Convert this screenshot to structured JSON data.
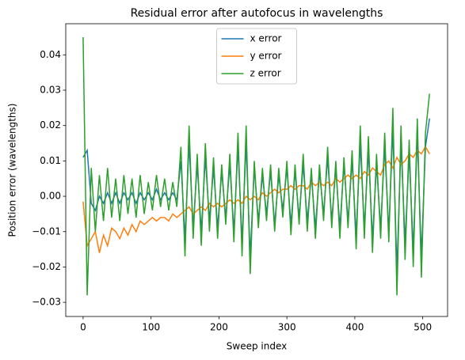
{
  "chart_data": {
    "type": "line",
    "title": "Residual error after autofocus in wavelengths",
    "xlabel": "Sweep index",
    "ylabel": "Position error (wavelengths)",
    "legend": "upper center",
    "x": [
      0,
      6,
      12,
      18,
      24,
      30,
      36,
      42,
      48,
      54,
      60,
      66,
      72,
      78,
      84,
      90,
      96,
      102,
      108,
      114,
      120,
      126,
      132,
      138,
      144,
      150,
      156,
      162,
      168,
      174,
      180,
      186,
      192,
      198,
      204,
      210,
      216,
      222,
      228,
      234,
      240,
      246,
      252,
      258,
      264,
      270,
      276,
      282,
      288,
      294,
      300,
      306,
      312,
      318,
      324,
      330,
      336,
      342,
      348,
      354,
      360,
      366,
      372,
      378,
      384,
      390,
      396,
      402,
      408,
      414,
      420,
      426,
      432,
      438,
      444,
      450,
      456,
      462,
      468,
      474,
      480,
      486,
      492,
      498,
      504,
      510
    ],
    "series": [
      {
        "name": "x error",
        "color": "#1f77b4",
        "values": [
          0.011,
          0.013,
          -0.002,
          -0.004,
          0.0,
          -0.002,
          0.001,
          -0.002,
          0.001,
          -0.002,
          0.001,
          -0.001,
          0.001,
          -0.002,
          0.001,
          -0.001,
          0.001,
          -0.001,
          0.002,
          -0.001,
          0.001,
          -0.001,
          0.001,
          -0.001,
          0.01,
          -0.012,
          0.015,
          -0.009,
          0.009,
          -0.01,
          0.011,
          -0.007,
          0.008,
          -0.009,
          0.007,
          -0.006,
          0.009,
          -0.01,
          0.014,
          -0.013,
          0.015,
          -0.017,
          0.008,
          -0.007,
          0.006,
          -0.005,
          0.007,
          -0.008,
          0.006,
          -0.004,
          0.008,
          -0.008,
          0.007,
          -0.006,
          0.009,
          -0.007,
          0.006,
          -0.009,
          0.007,
          -0.005,
          0.011,
          -0.007,
          0.008,
          -0.009,
          0.009,
          -0.007,
          0.01,
          -0.011,
          0.015,
          -0.009,
          0.013,
          -0.012,
          0.009,
          -0.009,
          0.014,
          -0.01,
          0.019,
          -0.021,
          0.015,
          -0.013,
          0.012,
          -0.015,
          0.017,
          -0.017,
          0.014,
          0.022
        ]
      },
      {
        "name": "y error",
        "color": "#ff7f0e",
        "values": [
          -0.0015,
          -0.014,
          -0.012,
          -0.01,
          -0.016,
          -0.011,
          -0.014,
          -0.009,
          -0.01,
          -0.012,
          -0.009,
          -0.011,
          -0.008,
          -0.01,
          -0.007,
          -0.008,
          -0.007,
          -0.006,
          -0.007,
          -0.006,
          -0.006,
          -0.007,
          -0.005,
          -0.006,
          -0.005,
          -0.004,
          -0.003,
          -0.005,
          -0.004,
          -0.003,
          -0.004,
          -0.002,
          -0.003,
          -0.002,
          -0.003,
          -0.002,
          -0.001,
          -0.002,
          -0.001,
          -0.002,
          0,
          -0.001,
          0,
          -0.001,
          0.001,
          0,
          0.001,
          0.002,
          0.001,
          0.002,
          0.002,
          0.003,
          0.002,
          0.003,
          0.003,
          0.002,
          0.004,
          0.003,
          0.004,
          0.003,
          0.004,
          0.003,
          0.005,
          0.004,
          0.005,
          0.006,
          0.005,
          0.006,
          0.005,
          0.007,
          0.006,
          0.008,
          0.007,
          0.006,
          0.009,
          0.01,
          0.008,
          0.011,
          0.009,
          0.01,
          0.012,
          0.011,
          0.013,
          0.012,
          0.014,
          0.012
        ]
      },
      {
        "name": "z error",
        "color": "#2ca02c",
        "values": [
          0.045,
          -0.028,
          0.008,
          -0.01,
          0.006,
          -0.007,
          0.008,
          -0.006,
          0.005,
          -0.007,
          0.006,
          -0.005,
          0.005,
          -0.006,
          0.006,
          -0.005,
          0.004,
          -0.004,
          0.006,
          -0.003,
          0.005,
          -0.004,
          0.004,
          -0.003,
          0.014,
          -0.017,
          0.02,
          -0.012,
          0.012,
          -0.014,
          0.015,
          -0.01,
          0.011,
          -0.012,
          0.009,
          -0.008,
          0.012,
          -0.013,
          0.018,
          -0.017,
          0.02,
          -0.022,
          0.01,
          -0.009,
          0.008,
          -0.007,
          0.009,
          -0.01,
          0.008,
          -0.006,
          0.01,
          -0.011,
          0.009,
          -0.008,
          0.012,
          -0.01,
          0.008,
          -0.012,
          0.009,
          -0.007,
          0.014,
          -0.009,
          0.01,
          -0.012,
          0.011,
          -0.009,
          0.013,
          -0.015,
          0.02,
          -0.012,
          0.017,
          -0.016,
          0.012,
          -0.012,
          0.018,
          -0.013,
          0.025,
          -0.028,
          0.02,
          -0.018,
          0.016,
          -0.02,
          0.022,
          -0.023,
          0.018,
          0.029
        ]
      }
    ],
    "xlim": [
      -25.55,
      536.55
    ],
    "ylim": [
      -0.034,
      0.0488
    ],
    "xticks": [
      0,
      100,
      200,
      300,
      400,
      500
    ],
    "yticks": [
      {
        "value": -0.03,
        "label": "−0.03"
      },
      {
        "value": -0.02,
        "label": "−0.02"
      },
      {
        "value": -0.01,
        "label": "−0.01"
      },
      {
        "value": 0,
        "label": "0.00"
      },
      {
        "value": 0.01,
        "label": "0.01"
      },
      {
        "value": 0.02,
        "label": "0.02"
      },
      {
        "value": 0.03,
        "label": "0.03"
      },
      {
        "value": 0.04,
        "label": "0.04"
      }
    ]
  }
}
